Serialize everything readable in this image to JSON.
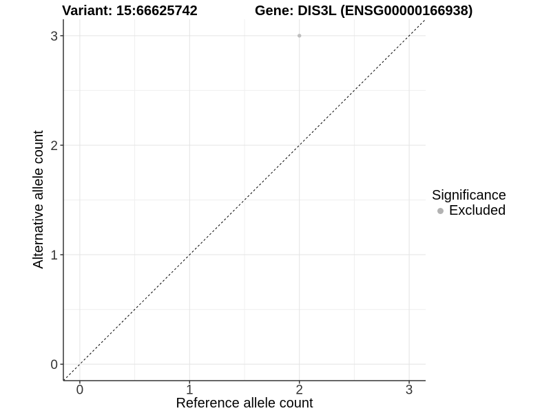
{
  "figure": {
    "background": "#ffffff",
    "title_left": "Variant: 15:66625742",
    "title_right": "Gene: DIS3L (ENSG00000166938)"
  },
  "chart_data": {
    "type": "scatter",
    "title_left": "Variant: 15:66625742",
    "title_right": "Gene: DIS3L (ENSG00000166938)",
    "xlabel": "Reference allele count",
    "ylabel": "Alternative allele count",
    "xlim": [
      -0.15,
      3.15
    ],
    "ylim": [
      -0.15,
      3.15
    ],
    "x_ticks": [
      0,
      1,
      2,
      3
    ],
    "y_ticks": [
      0,
      1,
      2,
      3
    ],
    "x_minor_ticks": [
      0.5,
      1.5,
      2.5
    ],
    "y_minor_ticks": [
      0.5,
      1.5,
      2.5
    ],
    "grid": "major-and-minor",
    "series": [
      {
        "name": "Excluded",
        "marker": "circle",
        "color": "#bebebe",
        "points": [
          {
            "x": 2,
            "y": 3
          }
        ]
      }
    ],
    "reference_line": {
      "kind": "identity (y = x)",
      "style": "dashed",
      "color": "#000000",
      "from": [
        -0.15,
        -0.15
      ],
      "to": [
        3.15,
        3.15
      ]
    },
    "legend": {
      "title": "Significance",
      "position": "right",
      "entries": [
        {
          "label": "Excluded",
          "color": "#b2b2b2",
          "marker": "circle"
        }
      ]
    }
  },
  "colors": {
    "grid_major": "#e3e3e3",
    "grid_minor": "#efefef",
    "axis_line": "#333333",
    "tick_label": "#333333",
    "title_text": "#000000",
    "point_fill": "#bebebe",
    "legend_dot": "#b2b2b2",
    "background": "#ffffff"
  }
}
